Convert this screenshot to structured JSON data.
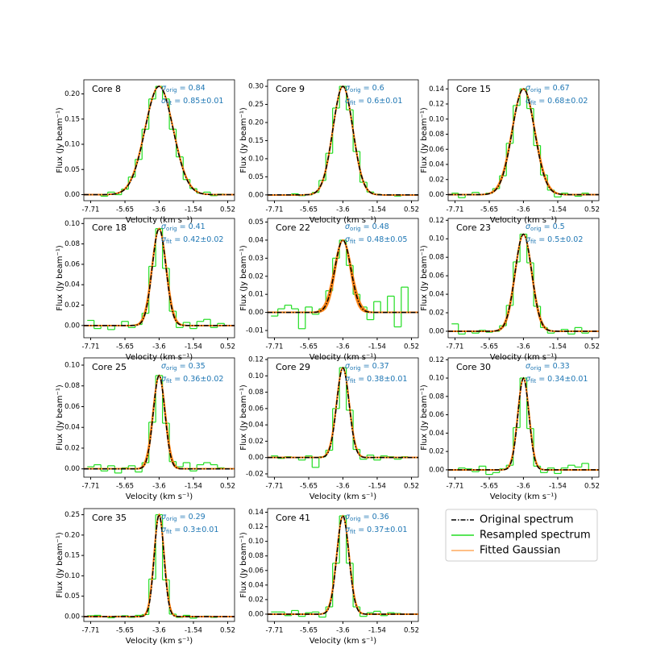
{
  "legend": {
    "entries": [
      {
        "name": "Original spectrum",
        "color": "#000000"
      },
      {
        "name": "Resampled spectrum",
        "color": "#22dd22"
      },
      {
        "name": "Fitted Gaussian",
        "color": "#ff7f0e"
      }
    ]
  },
  "chart_data": [
    {
      "type": "spectrum",
      "title": "Core 8",
      "x_label": "Velocity (km s⁻¹)",
      "y_label": "Flux (Jy beam⁻¹)",
      "sigma_symbol": "σ",
      "orig_subscript": "orig",
      "fit_subscript": "fit",
      "equals": "=",
      "plus_minus": "±",
      "sigma_orig": 0.84,
      "sigma_fit": 0.85,
      "sigma_fit_error": 0.01,
      "amplitude": 0.215,
      "center": -3.6,
      "xlim": [
        -8.12,
        0.93
      ],
      "xticks": [
        -7.71,
        -5.65,
        -3.6,
        -1.54,
        0.52
      ],
      "ylim": [
        -0.012,
        0.228
      ],
      "yticks": [
        {
          "value": 0,
          "label": "0.00"
        },
        0.05,
        {
          "value": 0.1,
          "label": "0.10"
        },
        0.15,
        {
          "value": 0.2,
          "label": "0.20"
        }
      ],
      "x": [
        -7.71,
        -7.3,
        -6.89,
        -6.48,
        -6.06,
        -5.65,
        -5.24,
        -4.83,
        -4.42,
        -4.01,
        -3.6,
        -3.19,
        -2.78,
        -2.37,
        -1.95,
        -1.54,
        -1.13,
        -0.72,
        -0.31,
        0.11,
        0.52
      ],
      "values": [
        0,
        0,
        -0.003,
        0.005,
        0,
        0.011,
        0.035,
        0.07,
        0.13,
        0.19,
        0.215,
        0.19,
        0.13,
        0.075,
        0.03,
        0.012,
        0.003,
        0.005,
        -0.002,
        0.001,
        0
      ]
    },
    {
      "type": "spectrum",
      "title": "Core 9",
      "x_label": "Velocity (km s⁻¹)",
      "y_label": "Flux (Jy beam⁻¹)",
      "sigma_symbol": "σ",
      "orig_subscript": "orig",
      "fit_subscript": "fit",
      "equals": "=",
      "plus_minus": "±",
      "sigma_orig": 0.6,
      "sigma_fit": 0.6,
      "sigma_fit_error": 0.01,
      "amplitude": 0.3,
      "center": -3.6,
      "xlim": [
        -8.12,
        0.93
      ],
      "xticks": [
        -7.71,
        -5.65,
        -3.6,
        -1.54,
        0.52
      ],
      "ylim": [
        -0.016,
        0.318
      ],
      "yticks": [
        {
          "value": 0,
          "label": "0.00"
        },
        0.05,
        {
          "value": 0.1,
          "label": "0.10"
        },
        0.15,
        {
          "value": 0.2,
          "label": "0.20"
        },
        0.25,
        {
          "value": 0.3,
          "label": "0.30"
        }
      ],
      "x": [
        -7.71,
        -7.3,
        -6.89,
        -6.48,
        -6.06,
        -5.65,
        -5.24,
        -4.83,
        -4.42,
        -4.01,
        -3.6,
        -3.19,
        -2.78,
        -2.37,
        -1.95,
        -1.54,
        -1.13,
        -0.72,
        -0.31,
        0.11,
        0.52
      ],
      "values": [
        0,
        0,
        0,
        0.003,
        -0.002,
        0,
        0.007,
        0.04,
        0.115,
        0.24,
        0.3,
        0.235,
        0.12,
        0.035,
        0.008,
        0.002,
        0,
        0,
        -0.003,
        0,
        0
      ]
    },
    {
      "type": "spectrum",
      "title": "Core 15",
      "x_label": "Velocity (km s⁻¹)",
      "y_label": "Flux (Jy beam⁻¹)",
      "sigma_symbol": "σ",
      "orig_subscript": "orig",
      "fit_subscript": "fit",
      "equals": "=",
      "plus_minus": "±",
      "sigma_orig": 0.67,
      "sigma_fit": 0.68,
      "sigma_fit_error": 0.02,
      "amplitude": 0.14,
      "center": -3.6,
      "xlim": [
        -8.12,
        0.93
      ],
      "xticks": [
        -7.71,
        -5.65,
        -3.6,
        -1.54,
        0.52
      ],
      "ylim": [
        -0.008,
        0.152
      ],
      "yticks": [
        {
          "value": 0,
          "label": "0.00"
        },
        0.02,
        0.04,
        0.06,
        0.08,
        {
          "value": 0.1,
          "label": "0.10"
        },
        0.12,
        0.14
      ],
      "x": [
        -7.71,
        -7.3,
        -6.89,
        -6.48,
        -6.06,
        -5.65,
        -5.24,
        -4.83,
        -4.42,
        -4.01,
        -3.6,
        -3.19,
        -2.78,
        -2.37,
        -1.95,
        -1.54,
        -1.13,
        -0.72,
        -0.31,
        0.11,
        0.52
      ],
      "values": [
        0.002,
        -0.004,
        0,
        0.003,
        0,
        0.002,
        0.008,
        0.025,
        0.068,
        0.118,
        0.14,
        0.114,
        0.065,
        0.026,
        0.006,
        -0.003,
        0.002,
        0,
        -0.002,
        0.002,
        0
      ]
    },
    {
      "type": "spectrum",
      "title": "Core 18",
      "x_label": "Velocity (km s⁻¹)",
      "y_label": "Flux (Jy beam⁻¹)",
      "sigma_symbol": "σ",
      "orig_subscript": "orig",
      "fit_subscript": "fit",
      "equals": "=",
      "plus_minus": "±",
      "sigma_orig": 0.41,
      "sigma_fit": 0.42,
      "sigma_fit_error": 0.02,
      "amplitude": 0.095,
      "center": -3.6,
      "xlim": [
        -8.12,
        0.93
      ],
      "xticks": [
        -7.71,
        -5.65,
        -3.6,
        -1.54,
        0.52
      ],
      "ylim": [
        -0.012,
        0.105
      ],
      "yticks": [
        {
          "value": 0,
          "label": "0.00"
        },
        0.02,
        0.04,
        0.06,
        0.08,
        {
          "value": 0.1,
          "label": "0.10"
        }
      ],
      "x": [
        -7.71,
        -7.3,
        -6.89,
        -6.48,
        -6.06,
        -5.65,
        -5.24,
        -4.83,
        -4.42,
        -4.01,
        -3.6,
        -3.19,
        -2.78,
        -2.37,
        -1.95,
        -1.54,
        -1.13,
        -0.72,
        -0.31,
        0.11,
        0.52
      ],
      "values": [
        0.005,
        -0.003,
        0,
        -0.004,
        0,
        0.004,
        -0.002,
        0.001,
        0.012,
        0.058,
        0.095,
        0.056,
        0.014,
        -0.002,
        0.003,
        -0.003,
        0.004,
        0.006,
        -0.002,
        0.002,
        0
      ]
    },
    {
      "type": "spectrum",
      "title": "Core 22",
      "x_label": "Velocity (km s⁻¹)",
      "y_label": "Flux (Jy beam⁻¹)",
      "sigma_symbol": "σ",
      "orig_subscript": "orig",
      "fit_subscript": "fit",
      "equals": "=",
      "plus_minus": "±",
      "sigma_orig": 0.48,
      "sigma_fit": 0.48,
      "sigma_fit_error": 0.05,
      "amplitude": 0.04,
      "center": -3.6,
      "xlim": [
        -8.12,
        0.93
      ],
      "xticks": [
        -7.71,
        -5.65,
        -3.6,
        -1.54,
        0.52
      ],
      "ylim": [
        -0.014,
        0.052
      ],
      "yticks": [
        -0.01,
        {
          "value": 0,
          "label": "0.00"
        },
        0.01,
        0.02,
        0.03,
        0.04,
        0.05
      ],
      "x": [
        -7.71,
        -7.3,
        -6.89,
        -6.48,
        -6.06,
        -5.65,
        -5.24,
        -4.83,
        -4.42,
        -4.01,
        -3.6,
        -3.19,
        -2.78,
        -2.37,
        -1.95,
        -1.54,
        -1.13,
        -0.72,
        -0.31,
        0.11,
        0.52
      ],
      "values": [
        -0.002,
        0.002,
        0.004,
        0.002,
        -0.009,
        0.003,
        -0.001,
        0.002,
        0.012,
        0.03,
        0.04,
        0.026,
        0.01,
        0.003,
        -0.004,
        0.006,
        0,
        0.009,
        -0.008,
        0.014,
        0
      ]
    },
    {
      "type": "spectrum",
      "title": "Core 23",
      "x_label": "Velocity (km s⁻¹)",
      "y_label": "Flux (Jy beam⁻¹)",
      "sigma_symbol": "σ",
      "orig_subscript": "orig",
      "fit_subscript": "fit",
      "equals": "=",
      "plus_minus": "±",
      "sigma_orig": 0.5,
      "sigma_fit": 0.5,
      "sigma_fit_error": 0.02,
      "amplitude": 0.105,
      "center": -3.6,
      "xlim": [
        -8.12,
        0.93
      ],
      "xticks": [
        -7.71,
        -5.65,
        -3.6,
        -1.54,
        0.52
      ],
      "ylim": [
        -0.007,
        0.122
      ],
      "yticks": [
        {
          "value": 0,
          "label": "0.00"
        },
        0.02,
        0.04,
        0.06,
        0.08,
        {
          "value": 0.1,
          "label": "0.10"
        },
        0.12
      ],
      "x": [
        -7.71,
        -7.3,
        -6.89,
        -6.48,
        -6.06,
        -5.65,
        -5.24,
        -4.83,
        -4.42,
        -4.01,
        -3.6,
        -3.19,
        -2.78,
        -2.37,
        -1.95,
        -1.54,
        -1.13,
        -0.72,
        -0.31,
        0.11,
        0.52
      ],
      "values": [
        0.008,
        -0.003,
        0,
        -0.002,
        0.001,
        -0.001,
        0,
        0.006,
        0.028,
        0.075,
        0.105,
        0.074,
        0.027,
        0.004,
        -0.002,
        0,
        0.002,
        -0.003,
        0.004,
        -0.002,
        0
      ]
    },
    {
      "type": "spectrum",
      "title": "Core 25",
      "x_label": "Velocity (km s⁻¹)",
      "y_label": "Flux (Jy beam⁻¹)",
      "sigma_symbol": "σ",
      "orig_subscript": "orig",
      "fit_subscript": "fit",
      "equals": "=",
      "plus_minus": "±",
      "sigma_orig": 0.35,
      "sigma_fit": 0.36,
      "sigma_fit_error": 0.02,
      "amplitude": 0.09,
      "center": -3.6,
      "xlim": [
        -8.12,
        0.93
      ],
      "xticks": [
        -7.71,
        -5.65,
        -3.6,
        -1.54,
        0.52
      ],
      "ylim": [
        -0.008,
        0.107
      ],
      "yticks": [
        {
          "value": 0,
          "label": "0.00"
        },
        0.02,
        0.04,
        0.06,
        0.08,
        {
          "value": 0.1,
          "label": "0.10"
        }
      ],
      "x": [
        -7.71,
        -7.3,
        -6.89,
        -6.48,
        -6.06,
        -5.65,
        -5.24,
        -4.83,
        -4.42,
        -4.01,
        -3.6,
        -3.19,
        -2.78,
        -2.37,
        -1.95,
        -1.54,
        -1.13,
        -0.72,
        -0.31,
        0.11,
        0.52
      ],
      "values": [
        0.002,
        0.004,
        -0.002,
        0.003,
        -0.004,
        0.001,
        0.003,
        -0.003,
        0.006,
        0.045,
        0.09,
        0.044,
        0.007,
        0.002,
        0.006,
        -0.002,
        0.004,
        0.006,
        0.004,
        0.001,
        0
      ]
    },
    {
      "type": "spectrum",
      "title": "Core 29",
      "x_label": "Velocity (km s⁻¹)",
      "y_label": "Flux (Jy beam⁻¹)",
      "sigma_symbol": "σ",
      "orig_subscript": "orig",
      "fit_subscript": "fit",
      "equals": "=",
      "plus_minus": "±",
      "sigma_orig": 0.37,
      "sigma_fit": 0.38,
      "sigma_fit_error": 0.01,
      "amplitude": 0.11,
      "center": -3.6,
      "xlim": [
        -8.12,
        0.93
      ],
      "xticks": [
        -7.71,
        -5.65,
        -3.6,
        -1.54,
        0.52
      ],
      "ylim": [
        -0.024,
        0.122
      ],
      "yticks": [
        -0.02,
        {
          "value": 0,
          "label": "0.00"
        },
        0.02,
        0.04,
        0.06,
        0.08,
        {
          "value": 0.1,
          "label": "0.10"
        },
        0.12
      ],
      "x": [
        -7.71,
        -7.3,
        -6.89,
        -6.48,
        -6.06,
        -5.65,
        -5.24,
        -4.83,
        -4.42,
        -4.01,
        -3.6,
        -3.19,
        -2.78,
        -2.37,
        -1.95,
        -1.54,
        -1.13,
        -0.72,
        -0.31,
        0.11,
        0.52
      ],
      "values": [
        0.002,
        -0.001,
        0.001,
        0,
        -0.003,
        0.002,
        -0.012,
        0.001,
        0.009,
        0.06,
        0.11,
        0.058,
        0.01,
        -0.002,
        0.003,
        -0.003,
        0.002,
        0.001,
        -0.002,
        0.001,
        0
      ]
    },
    {
      "type": "spectrum",
      "title": "Core 30",
      "x_label": "Velocity (km s⁻¹)",
      "y_label": "Flux (Jy beam⁻¹)",
      "sigma_symbol": "σ",
      "orig_subscript": "orig",
      "fit_subscript": "fit",
      "equals": "=",
      "plus_minus": "±",
      "sigma_orig": 0.33,
      "sigma_fit": 0.34,
      "sigma_fit_error": 0.01,
      "amplitude": 0.1,
      "center": -3.6,
      "xlim": [
        -8.12,
        0.93
      ],
      "xticks": [
        -7.71,
        -5.65,
        -3.6,
        -1.54,
        0.52
      ],
      "ylim": [
        -0.008,
        0.122
      ],
      "yticks": [
        {
          "value": 0,
          "label": "0.00"
        },
        0.02,
        0.04,
        0.06,
        0.08,
        {
          "value": 0.1,
          "label": "0.10"
        },
        0.12
      ],
      "x": [
        -7.71,
        -7.3,
        -6.89,
        -6.48,
        -6.06,
        -5.65,
        -5.24,
        -4.83,
        -4.42,
        -4.01,
        -3.6,
        -3.19,
        -2.78,
        -2.37,
        -1.95,
        -1.54,
        -1.13,
        -0.72,
        -0.31,
        0.11,
        0.52
      ],
      "values": [
        0,
        0.002,
        0.001,
        -0.002,
        0.004,
        -0.005,
        -0.003,
        0.001,
        0.005,
        0.046,
        0.1,
        0.045,
        0.004,
        -0.003,
        0.002,
        -0.004,
        0.002,
        0.005,
        0.003,
        0.007,
        0
      ]
    },
    {
      "type": "spectrum",
      "title": "Core 35",
      "x_label": "Velocity (km s⁻¹)",
      "y_label": "Flux (Jy beam⁻¹)",
      "sigma_symbol": "σ",
      "orig_subscript": "orig",
      "fit_subscript": "fit",
      "equals": "=",
      "plus_minus": "±",
      "sigma_orig": 0.29,
      "sigma_fit": 0.3,
      "sigma_fit_error": 0.01,
      "amplitude": 0.25,
      "center": -3.6,
      "xlim": [
        -8.12,
        0.93
      ],
      "xticks": [
        -7.71,
        -5.65,
        -3.6,
        -1.54,
        0.52
      ],
      "ylim": [
        -0.012,
        0.265
      ],
      "yticks": [
        {
          "value": 0,
          "label": "0.00"
        },
        0.05,
        {
          "value": 0.1,
          "label": "0.10"
        },
        0.15,
        {
          "value": 0.2,
          "label": "0.20"
        },
        0.25
      ],
      "x": [
        -7.71,
        -7.3,
        -6.89,
        -6.48,
        -6.06,
        -5.65,
        -5.24,
        -4.83,
        -4.42,
        -4.01,
        -3.6,
        -3.19,
        -2.78,
        -2.37,
        -1.95,
        -1.54,
        -1.13,
        -0.72,
        -0.31,
        0.11,
        0.52
      ],
      "values": [
        0.002,
        0.003,
        0,
        -0.003,
        0.001,
        0.002,
        -0.002,
        0.003,
        0.005,
        0.092,
        0.25,
        0.09,
        0.006,
        -0.002,
        0.003,
        -0.004,
        0,
        0.001,
        -0.002,
        0,
        0
      ]
    },
    {
      "type": "spectrum",
      "title": "Core 41",
      "x_label": "Velocity (km s⁻¹)",
      "y_label": "Flux (Jy beam⁻¹)",
      "sigma_symbol": "σ",
      "orig_subscript": "orig",
      "fit_subscript": "fit",
      "equals": "=",
      "plus_minus": "±",
      "sigma_orig": 0.36,
      "sigma_fit": 0.37,
      "sigma_fit_error": 0.01,
      "amplitude": 0.135,
      "center": -3.6,
      "xlim": [
        -8.12,
        0.93
      ],
      "xticks": [
        -7.71,
        -5.65,
        -3.6,
        -1.54,
        0.52
      ],
      "ylim": [
        -0.01,
        0.145
      ],
      "yticks": [
        {
          "value": 0,
          "label": "0.00"
        },
        0.02,
        0.04,
        0.06,
        0.08,
        {
          "value": 0.1,
          "label": "0.10"
        },
        0.12,
        0.14
      ],
      "x": [
        -7.71,
        -7.3,
        -6.89,
        -6.48,
        -6.06,
        -5.65,
        -5.24,
        -4.83,
        -4.42,
        -4.01,
        -3.6,
        -3.19,
        -2.78,
        -2.37,
        -1.95,
        -1.54,
        -1.13,
        -0.72,
        -0.31,
        0.11,
        0.52
      ],
      "values": [
        0.003,
        0.003,
        -0.002,
        0.005,
        -0.003,
        0.002,
        0.003,
        -0.004,
        0.01,
        0.07,
        0.135,
        0.07,
        0.01,
        -0.003,
        0.002,
        0.004,
        -0.002,
        0.002,
        0.001,
        0,
        0
      ]
    }
  ]
}
